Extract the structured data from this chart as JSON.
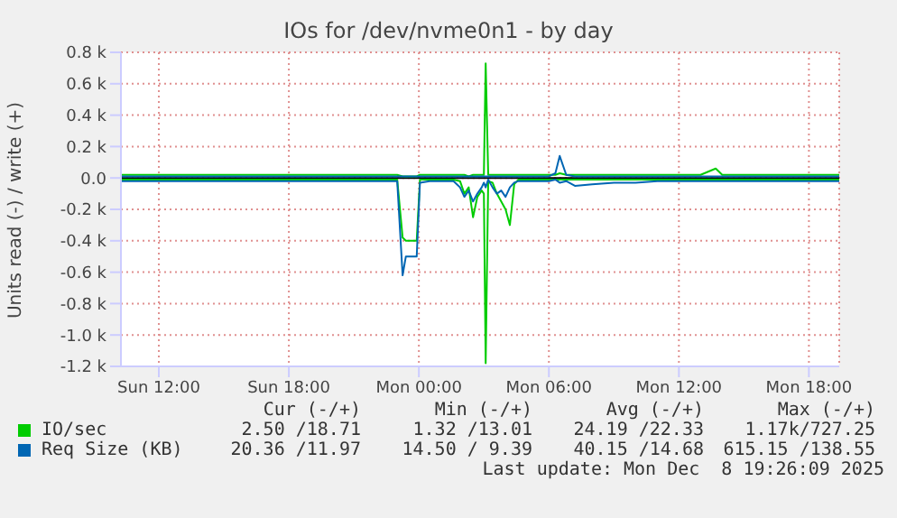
{
  "chart_data": {
    "type": "line",
    "title": "IOs for /dev/nvme0n1 - by day",
    "ylabel": "Units read (-) / write (+)",
    "x": [
      "2025-12-07T10:15",
      "2025-12-07T11:00",
      "2025-12-07T12:00",
      "2025-12-07T13:00",
      "2025-12-07T14:00",
      "2025-12-07T15:00",
      "2025-12-07T16:00",
      "2025-12-07T17:00",
      "2025-12-07T18:00",
      "2025-12-07T19:00",
      "2025-12-07T20:00",
      "2025-12-07T21:00",
      "2025-12-07T22:00",
      "2025-12-07T23:00",
      "2025-12-07T23:15",
      "2025-12-07T23:24",
      "2025-12-07T23:54",
      "2025-12-08T00:03",
      "2025-12-08T00:30",
      "2025-12-08T01:00",
      "2025-12-08T01:36",
      "2025-12-08T01:54",
      "2025-12-08T02:06",
      "2025-12-08T02:18",
      "2025-12-08T02:30",
      "2025-12-08T02:42",
      "2025-12-08T02:54",
      "2025-12-08T03:00",
      "2025-12-08T03:05",
      "2025-12-08T03:12",
      "2025-12-08T03:24",
      "2025-12-08T03:36",
      "2025-12-08T03:48",
      "2025-12-08T04:00",
      "2025-12-08T04:12",
      "2025-12-08T04:24",
      "2025-12-08T04:36",
      "2025-12-08T05:00",
      "2025-12-08T05:30",
      "2025-12-08T06:00",
      "2025-12-08T06:18",
      "2025-12-08T06:30",
      "2025-12-08T06:48",
      "2025-12-08T07:12",
      "2025-12-08T08:00",
      "2025-12-08T09:00",
      "2025-12-08T10:00",
      "2025-12-08T11:00",
      "2025-12-08T11:54",
      "2025-12-08T12:30",
      "2025-12-08T13:00",
      "2025-12-08T13:42",
      "2025-12-08T14:00",
      "2025-12-08T15:00",
      "2025-12-08T16:00",
      "2025-12-08T17:00",
      "2025-12-08T18:00",
      "2025-12-08T19:24"
    ],
    "series": [
      {
        "name": "IO/sec",
        "color": "#00cc00",
        "values": [
          20,
          20,
          20,
          20,
          20,
          20,
          20,
          20,
          20,
          20,
          20,
          20,
          20,
          20,
          10,
          10,
          10,
          20,
          20,
          20,
          20,
          20,
          20,
          10,
          20,
          20,
          20,
          20,
          730,
          20,
          20,
          20,
          20,
          20,
          20,
          20,
          20,
          20,
          20,
          20,
          20,
          30,
          20,
          20,
          20,
          20,
          20,
          20,
          20,
          20,
          20,
          60,
          20,
          20,
          20,
          20,
          20,
          20
        ]
      },
      {
        "color": "#00cc00",
        "values": [
          -10,
          -10,
          -10,
          -10,
          -10,
          -10,
          -10,
          -10,
          -10,
          -10,
          -10,
          -10,
          -10,
          -10,
          -380,
          -400,
          -400,
          -10,
          -10,
          -10,
          -10,
          -20,
          -100,
          -60,
          -250,
          -120,
          -80,
          -100,
          -1180,
          -20,
          -30,
          -100,
          -150,
          -200,
          -300,
          -40,
          -10,
          -10,
          -10,
          -10,
          -10,
          -10,
          -10,
          -10,
          -10,
          -10,
          -10,
          -10,
          -10,
          -10,
          -10,
          -10,
          -10,
          -10,
          -10,
          -10,
          -10,
          -10
        ]
      },
      {
        "name": "Req Size (KB)",
        "color": "#0066b3",
        "values": [
          10,
          10,
          10,
          10,
          10,
          10,
          10,
          10,
          10,
          10,
          10,
          10,
          10,
          10,
          10,
          10,
          10,
          10,
          10,
          10,
          10,
          10,
          10,
          10,
          10,
          10,
          10,
          10,
          10,
          10,
          10,
          10,
          10,
          10,
          10,
          10,
          10,
          10,
          10,
          10,
          30,
          140,
          20,
          10,
          10,
          10,
          10,
          10,
          10,
          10,
          10,
          10,
          10,
          10,
          10,
          10,
          10,
          10
        ]
      },
      {
        "color": "#0066b3",
        "values": [
          -20,
          -20,
          -20,
          -20,
          -20,
          -20,
          -20,
          -20,
          -20,
          -20,
          -20,
          -20,
          -20,
          -20,
          -620,
          -500,
          -500,
          -30,
          -20,
          -20,
          -20,
          -60,
          -120,
          -80,
          -150,
          -100,
          -60,
          -30,
          -60,
          -10,
          -60,
          -100,
          -80,
          -120,
          -60,
          -30,
          -20,
          -20,
          -20,
          -20,
          -10,
          -30,
          -20,
          -50,
          -40,
          -30,
          -30,
          -20,
          -20,
          -20,
          -20,
          -20,
          -20,
          -20,
          -20,
          -20,
          -20,
          -20
        ]
      }
    ],
    "xlim": [
      "2025-12-07T10:15",
      "2025-12-08T19:24"
    ],
    "xticks": [
      {
        "value": "2025-12-07T12:00",
        "label": "Sun 12:00"
      },
      {
        "value": "2025-12-07T18:00",
        "label": "Sun 18:00"
      },
      {
        "value": "2025-12-08T00:00",
        "label": "Mon 00:00"
      },
      {
        "value": "2025-12-08T06:00",
        "label": "Mon 06:00"
      },
      {
        "value": "2025-12-08T12:00",
        "label": "Mon 12:00"
      },
      {
        "value": "2025-12-08T18:00",
        "label": "Mon 18:00"
      }
    ],
    "ylim": [
      -1200,
      800
    ],
    "yticks": [
      {
        "value": -1200,
        "label": "-1.2 k"
      },
      {
        "value": -1000,
        "label": "-1.0 k"
      },
      {
        "value": -800,
        "label": "-0.8 k"
      },
      {
        "value": -600,
        "label": "-0.6 k"
      },
      {
        "value": -400,
        "label": "-0.4 k"
      },
      {
        "value": -200,
        "label": "-0.2 k"
      },
      {
        "value": 0,
        "label": "0.0"
      },
      {
        "value": 200,
        "label": "0.2 k"
      },
      {
        "value": 400,
        "label": "0.4 k"
      },
      {
        "value": 600,
        "label": "0.6 k"
      },
      {
        "value": 800,
        "label": "0.8 k"
      }
    ],
    "ref_lines": [
      {
        "axis": "y",
        "value": 0,
        "color": "#000000"
      }
    ],
    "grid": true,
    "legend": "bottom",
    "marker": "none",
    "line_style": "solid",
    "annotations": [
      "Cur (-/+)",
      "Min (-/+)",
      "Avg (-/+)",
      "Max (-/+)",
      "2.50 /18.71",
      "1.32 /13.01",
      "24.19 /22.33",
      "1.17k/727.25",
      "20.36 /11.97",
      "14.50 / 9.39",
      "40.15 /14.68",
      "615.15 /138.55",
      "Last update: Mon Dec  8 19:26:09 2025"
    ]
  }
}
